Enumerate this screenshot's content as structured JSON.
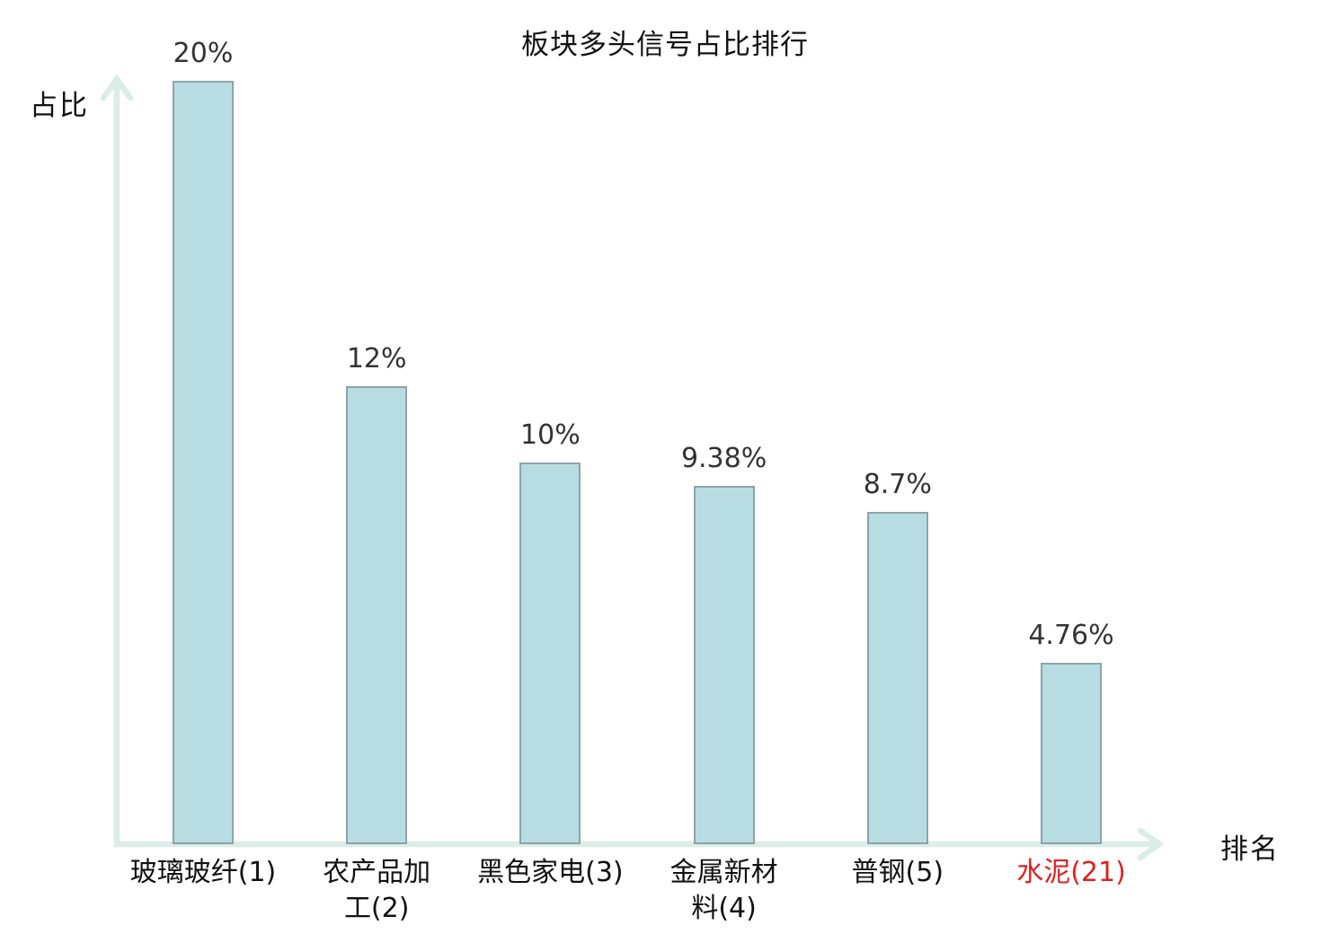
{
  "title": "板块多头信号占比排行",
  "axes": {
    "y_label": "占比",
    "x_label": "排名"
  },
  "colors": {
    "bar_fill": "#b7dde2",
    "bar_border": "#8fa3a6",
    "axis_line": "#dcece7",
    "value_text": "#333333",
    "label_text": "#111111",
    "highlight_text": "#e02020"
  },
  "chart_data": {
    "type": "bar",
    "title": "板块多头信号占比排行",
    "xlabel": "排名",
    "ylabel": "占比",
    "ylim": [
      0,
      20
    ],
    "grid": false,
    "legend": "none",
    "categories": [
      "玻璃玻纤(1)",
      "农产品加\n工(2)",
      "黑色家电(3)",
      "金属新材\n料(4)",
      "普钢(5)",
      "水泥(21)"
    ],
    "values": [
      20,
      12,
      10,
      9.38,
      8.7,
      4.76
    ],
    "value_labels": [
      "20%",
      "12%",
      "10%",
      "9.38%",
      "8.7%",
      "4.76%"
    ],
    "highlight_index": 5
  }
}
